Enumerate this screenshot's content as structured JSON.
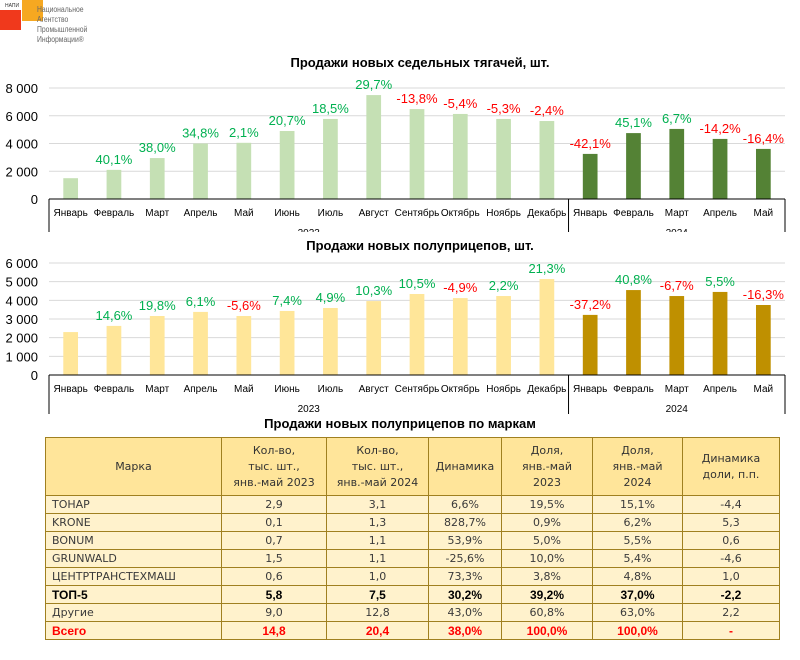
{
  "logo": {
    "abbr": "НАПИ",
    "lines": [
      "Национальное",
      "Агентство",
      "Промышленной",
      "Информации®"
    ]
  },
  "colors": {
    "positive": "#00b050",
    "negative": "#ff0000",
    "chart1_2023": "#c5e0b4",
    "chart1_2024": "#548235",
    "chart2_2023": "#ffe699",
    "chart2_2024": "#bf9000",
    "gridline": "#d9d9d9",
    "table_header": "#ffe59a",
    "table_row": "#fff2cc",
    "table_border": "#a08020"
  },
  "chart_data": [
    {
      "type": "bar",
      "title": "Продажи новых седельных тягачей, шт.",
      "xlabel": "",
      "ylabel": "",
      "ylim": [
        0,
        8000
      ],
      "yticks": [
        0,
        2000,
        4000,
        6000,
        8000
      ],
      "ytick_labels": [
        "0",
        "2 000",
        "4 000",
        "6 000",
        "8 000"
      ],
      "grid": true,
      "legend": "none",
      "categories": [
        "Январь",
        "Февраль",
        "Март",
        "Апрель",
        "Май",
        "Июнь",
        "Июль",
        "Август",
        "Сентябрь",
        "Октябрь",
        "Ноябрь",
        "Декабрь",
        "Январь",
        "Февраль",
        "Март",
        "Апрель",
        "Май"
      ],
      "groups": [
        {
          "label": "2023",
          "count": 12
        },
        {
          "label": "2024",
          "count": 5
        }
      ],
      "values": [
        1500,
        2100,
        2950,
        4000,
        4050,
        4900,
        5770,
        7490,
        6480,
        6130,
        5770,
        5620,
        3250,
        4750,
        5050,
        4330,
        3610
      ],
      "data_labels": [
        "",
        "40,1%",
        "38,0%",
        "34,8%",
        "2,1%",
        "20,7%",
        "18,5%",
        "29,7%",
        "-13,8%",
        "-5,4%",
        "-5,3%",
        "-2,4%",
        "-42,1%",
        "45,1%",
        "6,7%",
        "-14,2%",
        "-16,4%"
      ]
    },
    {
      "type": "bar",
      "title": "Продажи новых полуприцепов, шт.",
      "xlabel": "",
      "ylabel": "",
      "ylim": [
        0,
        6000
      ],
      "yticks": [
        0,
        1000,
        2000,
        3000,
        4000,
        5000,
        6000
      ],
      "ytick_labels": [
        "0",
        "1 000",
        "2 000",
        "3 000",
        "4 000",
        "5 000",
        "6 000"
      ],
      "grid": true,
      "legend": "none",
      "categories": [
        "Январь",
        "Февраль",
        "Март",
        "Апрель",
        "Май",
        "Июнь",
        "Июль",
        "Август",
        "Сентябрь",
        "Октябрь",
        "Ноябрь",
        "Декабрь",
        "Январь",
        "Февраль",
        "Март",
        "Апрель",
        "Май"
      ],
      "groups": [
        {
          "label": "2023",
          "count": 12
        },
        {
          "label": "2024",
          "count": 5
        }
      ],
      "values": [
        2300,
        2630,
        3160,
        3380,
        3160,
        3430,
        3590,
        3960,
        4340,
        4120,
        4230,
        5140,
        3220,
        4550,
        4230,
        4450,
        3750
      ],
      "data_labels": [
        "",
        "14,6%",
        "19,8%",
        "6,1%",
        "-5,6%",
        "7,4%",
        "4,9%",
        "10,3%",
        "10,5%",
        "-4,9%",
        "2,2%",
        "21,3%",
        "-37,2%",
        "40,8%",
        "-6,7%",
        "5,5%",
        "-16,3%"
      ]
    }
  ],
  "table": {
    "title": "Продажи новых полуприцепов по маркам",
    "headers": [
      [
        "Марка"
      ],
      [
        "Кол-во,",
        "тыс. шт.,",
        "янв.-май 2023"
      ],
      [
        "Кол-во,",
        "тыс. шт.,",
        "янв.-май 2024"
      ],
      [
        "Динамика"
      ],
      [
        "Доля,",
        "янв.-май",
        "2023"
      ],
      [
        "Доля,",
        "янв.-май",
        "2024"
      ],
      [
        "Динамика",
        "доли, п.п."
      ]
    ],
    "rows": [
      {
        "style": "normal",
        "cells": [
          "ТОНАР",
          "2,9",
          "3,1",
          "6,6%",
          "19,5%",
          "15,1%",
          "-4,4"
        ]
      },
      {
        "style": "normal",
        "cells": [
          "KRONE",
          "0,1",
          "1,3",
          "828,7%",
          "0,9%",
          "6,2%",
          "5,3"
        ]
      },
      {
        "style": "normal",
        "cells": [
          "BONUM",
          "0,7",
          "1,1",
          "53,9%",
          "5,0%",
          "5,5%",
          "0,6"
        ]
      },
      {
        "style": "normal",
        "cells": [
          "GRUNWALD",
          "1,5",
          "1,1",
          "-25,6%",
          "10,0%",
          "5,4%",
          "-4,6"
        ]
      },
      {
        "style": "normal",
        "cells": [
          "ЦЕНТРТРАНСТЕХМАШ",
          "0,6",
          "1,0",
          "73,3%",
          "3,8%",
          "4,8%",
          "1,0"
        ]
      },
      {
        "style": "bold",
        "cells": [
          "ТОП-5",
          "5,8",
          "7,5",
          "30,2%",
          "39,2%",
          "37,0%",
          "-2,2"
        ]
      },
      {
        "style": "normal",
        "cells": [
          "Другие",
          "9,0",
          "12,8",
          "43,0%",
          "60,8%",
          "63,0%",
          "2,2"
        ]
      },
      {
        "style": "total",
        "cells": [
          "Всего",
          "14,8",
          "20,4",
          "38,0%",
          "100,0%",
          "100,0%",
          "-"
        ]
      }
    ]
  }
}
